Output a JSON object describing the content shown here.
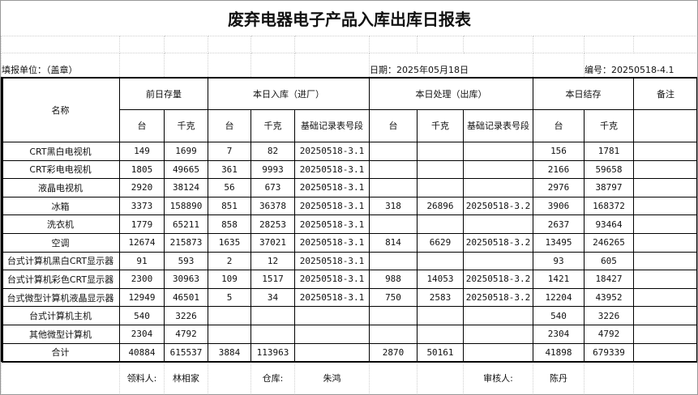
{
  "title": "废弃电器电子产品入库出库日报表",
  "info": {
    "unit_label": "填报单位：（盖章）",
    "date_label": "日期：2025年05月18日",
    "number_label": "编号：20250518-4.1"
  },
  "headers": {
    "name": "名称",
    "prev_stock": "前日存量",
    "inbound": "本日入库（进厂）",
    "processed": "本日处理（出库）",
    "end_stock": "本日结存",
    "remark": "备注",
    "unit": "台",
    "kg": "千克",
    "record_no": "基础记录表号段"
  },
  "rows": [
    [
      "CRT黑白电视机",
      "149",
      "1699",
      "7",
      "82",
      "20250518-3.1",
      "",
      "",
      "",
      "156",
      "1781",
      ""
    ],
    [
      "CRT彩电电视机",
      "1805",
      "49665",
      "361",
      "9993",
      "20250518-3.1",
      "",
      "",
      "",
      "2166",
      "59658",
      ""
    ],
    [
      "液晶电视机",
      "2920",
      "38124",
      "56",
      "673",
      "20250518-3.1",
      "",
      "",
      "",
      "2976",
      "38797",
      ""
    ],
    [
      "冰箱",
      "3373",
      "158890",
      "851",
      "36378",
      "20250518-3.1",
      "318",
      "26896",
      "20250518-3.2",
      "3906",
      "168372",
      ""
    ],
    [
      "洗衣机",
      "1779",
      "65211",
      "858",
      "28253",
      "20250518-3.1",
      "",
      "",
      "",
      "2637",
      "93464",
      ""
    ],
    [
      "空调",
      "12674",
      "215873",
      "1635",
      "37021",
      "20250518-3.1",
      "814",
      "6629",
      "20250518-3.2",
      "13495",
      "246265",
      ""
    ],
    [
      "台式计算机黑白CRT显示器",
      "91",
      "593",
      "2",
      "12",
      "20250518-3.1",
      "",
      "",
      "",
      "93",
      "605",
      ""
    ],
    [
      "台式计算机彩色CRT显示器",
      "2300",
      "30963",
      "109",
      "1517",
      "20250518-3.1",
      "988",
      "14053",
      "20250518-3.2",
      "1421",
      "18427",
      ""
    ],
    [
      "台式微型计算机液晶显示器",
      "12949",
      "46501",
      "5",
      "34",
      "20250518-3.1",
      "750",
      "2583",
      "20250518-3.2",
      "12204",
      "43952",
      ""
    ],
    [
      "台式计算机主机",
      "540",
      "3226",
      "",
      "",
      "",
      "",
      "",
      "",
      "540",
      "3226",
      ""
    ],
    [
      "其他微型计算机",
      "2304",
      "4792",
      "",
      "",
      "",
      "",
      "",
      "",
      "2304",
      "4792",
      ""
    ],
    [
      "合计",
      "40884",
      "615537",
      "3884",
      "113963",
      "",
      "2870",
      "50161",
      "",
      "41898",
      "679339",
      ""
    ]
  ],
  "signatures": {
    "picker_label": "领料人:",
    "picker": "林相家",
    "warehouse_label": "仓库:",
    "warehouse": "朱鸿",
    "reviewer_label": "审核人:",
    "reviewer": "陈丹"
  }
}
